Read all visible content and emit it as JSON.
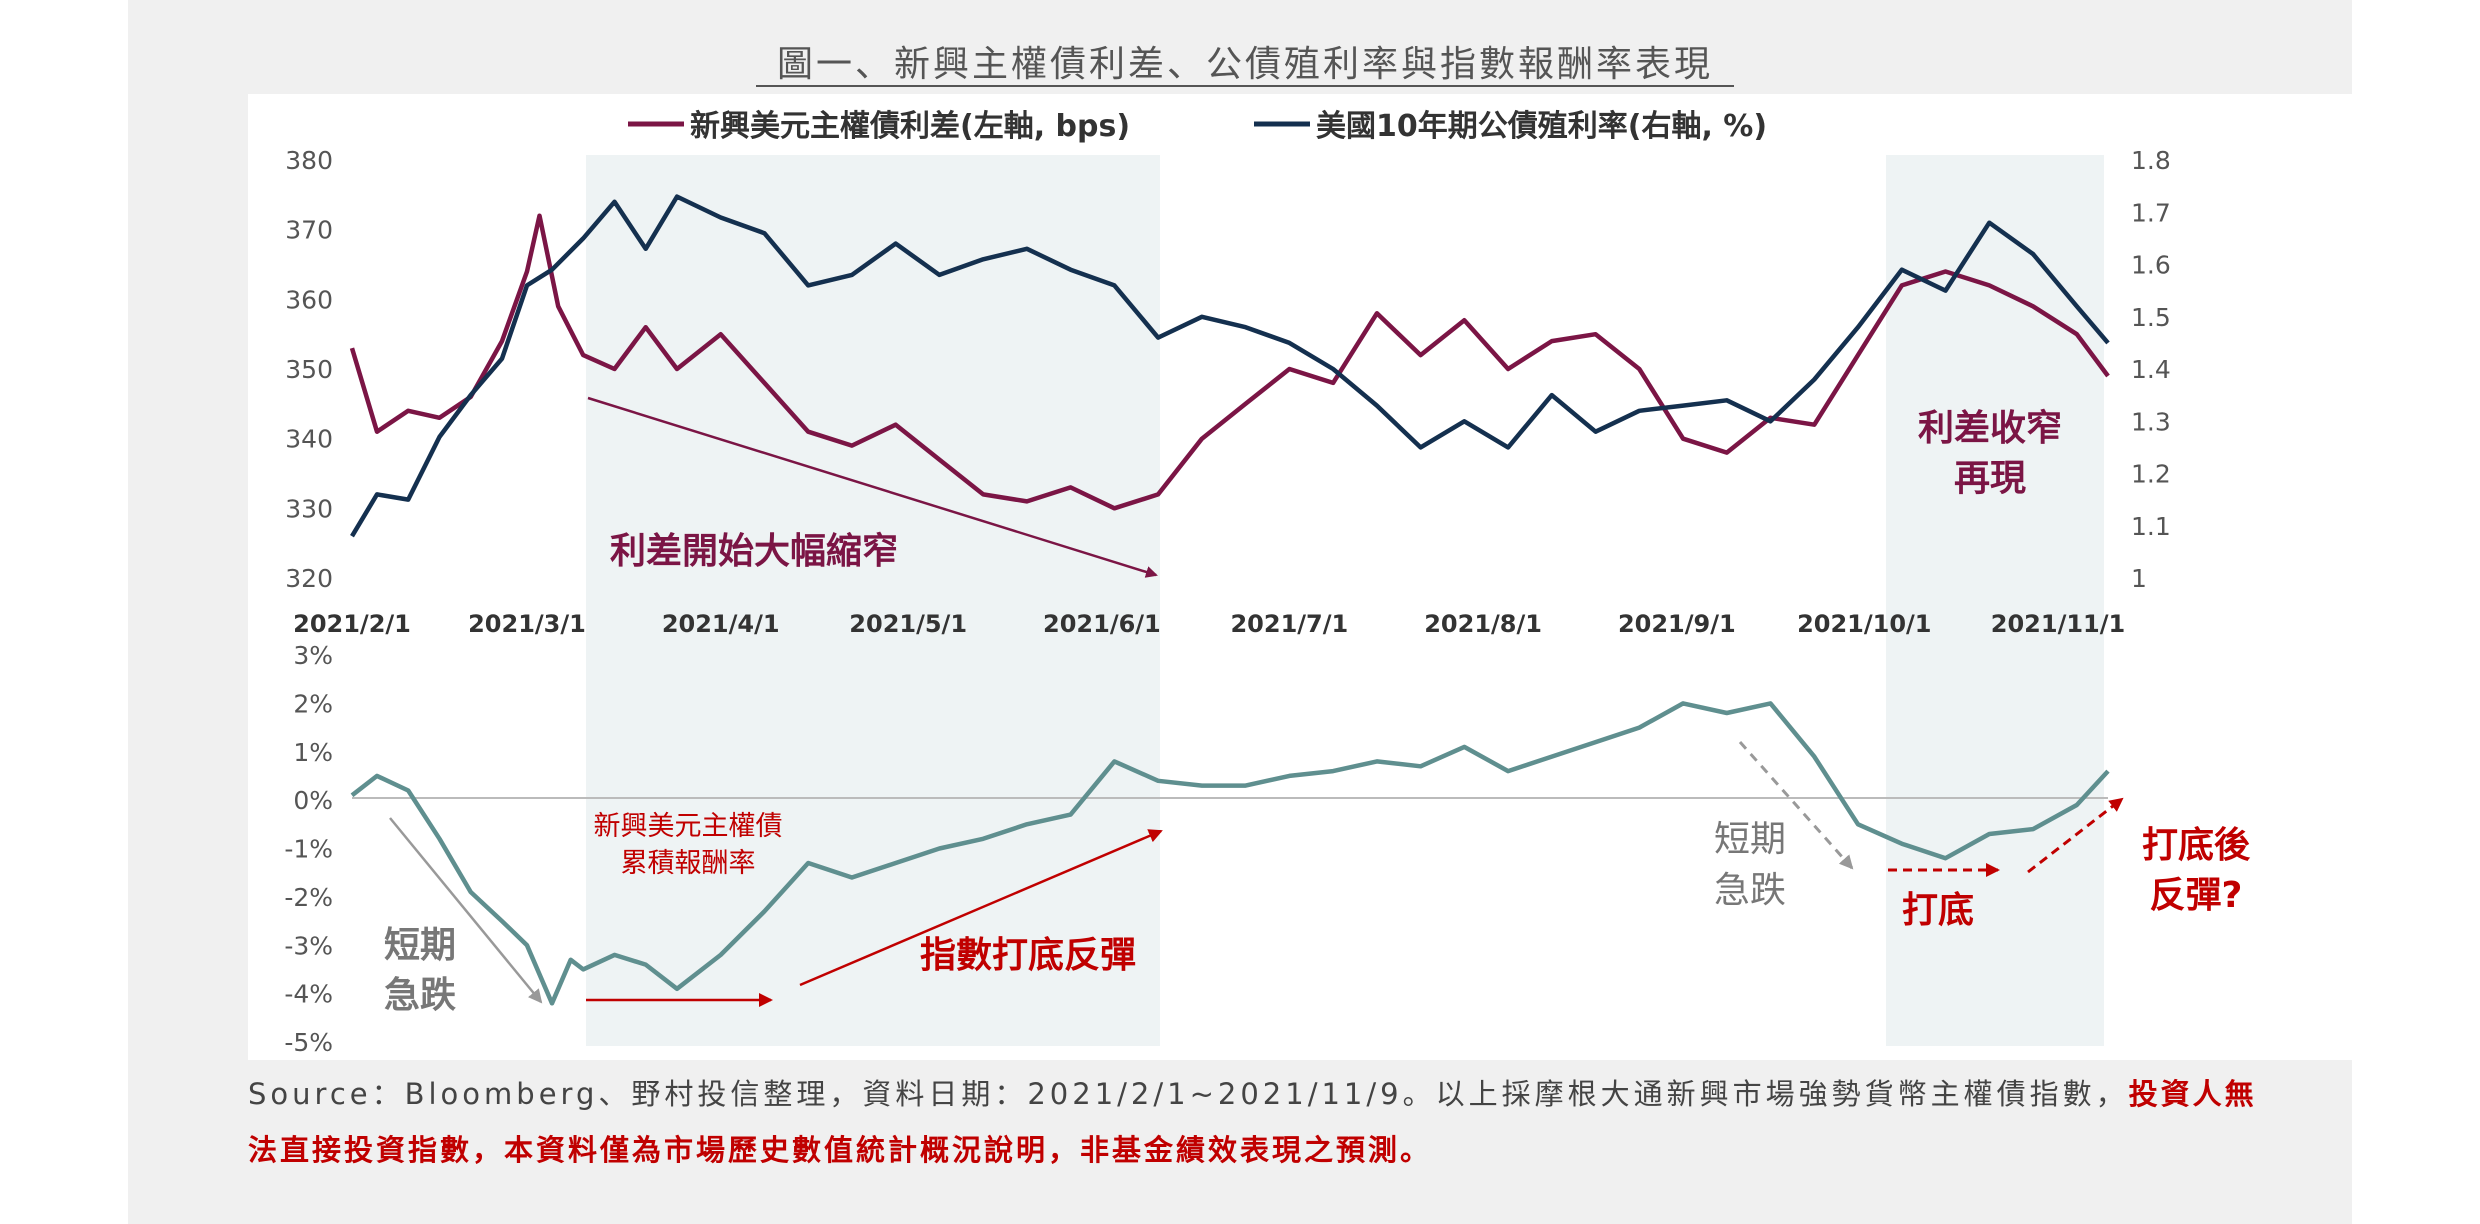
{
  "chart_data": [
    {
      "type": "line",
      "title": "圖一、新興主權債利差、公債殖利率與指數報酬率表現",
      "x_tick_labels": [
        "2021/2/1",
        "2021/3/1",
        "2021/4/1",
        "2021/5/1",
        "2021/6/1",
        "2021/7/1",
        "2021/8/1",
        "2021/9/1",
        "2021/10/1",
        "2021/11/1"
      ],
      "x_range": [
        "2021/2/1",
        "2021/11/9"
      ],
      "y_left": {
        "ylim": [
          320,
          380
        ],
        "ticks": [
          "380",
          "370",
          "360",
          "350",
          "340",
          "330",
          "320"
        ]
      },
      "y_right": {
        "ylim": [
          1.0,
          1.8
        ],
        "ticks": [
          "1.8",
          "1.7",
          "1.6",
          "1.5",
          "1.4",
          "1.3",
          "1.2",
          "1.1",
          "1"
        ]
      },
      "legend_position": "top",
      "grid": false,
      "series": [
        {
          "name": "新興美元主權債利差(左軸, bps)",
          "axis": "left",
          "color": "#7b1545",
          "x": [
            "2021/2/1",
            "2021/2/5",
            "2021/2/10",
            "2021/2/15",
            "2021/2/20",
            "2021/2/25",
            "2021/3/1",
            "2021/3/3",
            "2021/3/6",
            "2021/3/10",
            "2021/3/15",
            "2021/3/20",
            "2021/3/25",
            "2021/4/1",
            "2021/4/8",
            "2021/4/15",
            "2021/4/22",
            "2021/4/29",
            "2021/5/6",
            "2021/5/13",
            "2021/5/20",
            "2021/5/27",
            "2021/6/3",
            "2021/6/10",
            "2021/6/17",
            "2021/6/24",
            "2021/7/1",
            "2021/7/8",
            "2021/7/15",
            "2021/7/22",
            "2021/7/29",
            "2021/8/5",
            "2021/8/12",
            "2021/8/19",
            "2021/8/26",
            "2021/9/2",
            "2021/9/9",
            "2021/9/16",
            "2021/9/23",
            "2021/9/30",
            "2021/10/7",
            "2021/10/14",
            "2021/10/21",
            "2021/10/28",
            "2021/11/4",
            "2021/11/9"
          ],
          "values": [
            353,
            341,
            344,
            343,
            346,
            354,
            364,
            372,
            359,
            352,
            350,
            356,
            350,
            355,
            348,
            341,
            339,
            342,
            337,
            332,
            331,
            333,
            330,
            332,
            340,
            345,
            350,
            348,
            358,
            352,
            357,
            350,
            354,
            355,
            350,
            340,
            338,
            343,
            342,
            352,
            362,
            364,
            362,
            359,
            355,
            349
          ]
        },
        {
          "name": "美國10年期公債殖利率(右軸, %)",
          "axis": "right",
          "color": "#14304f",
          "x": [
            "2021/2/1",
            "2021/2/5",
            "2021/2/10",
            "2021/2/15",
            "2021/2/20",
            "2021/2/25",
            "2021/3/1",
            "2021/3/5",
            "2021/3/10",
            "2021/3/15",
            "2021/3/20",
            "2021/3/25",
            "2021/4/1",
            "2021/4/8",
            "2021/4/15",
            "2021/4/22",
            "2021/4/29",
            "2021/5/6",
            "2021/5/13",
            "2021/5/20",
            "2021/5/27",
            "2021/6/3",
            "2021/6/10",
            "2021/6/17",
            "2021/6/24",
            "2021/7/1",
            "2021/7/8",
            "2021/7/15",
            "2021/7/22",
            "2021/7/29",
            "2021/8/5",
            "2021/8/12",
            "2021/8/19",
            "2021/8/26",
            "2021/9/2",
            "2021/9/9",
            "2021/9/16",
            "2021/9/23",
            "2021/9/30",
            "2021/10/7",
            "2021/10/14",
            "2021/10/21",
            "2021/10/28",
            "2021/11/4",
            "2021/11/9"
          ],
          "values": [
            1.08,
            1.16,
            1.15,
            1.27,
            1.35,
            1.42,
            1.56,
            1.59,
            1.65,
            1.72,
            1.63,
            1.73,
            1.69,
            1.66,
            1.56,
            1.58,
            1.64,
            1.58,
            1.61,
            1.63,
            1.59,
            1.56,
            1.46,
            1.5,
            1.48,
            1.45,
            1.4,
            1.33,
            1.25,
            1.3,
            1.25,
            1.35,
            1.28,
            1.32,
            1.33,
            1.34,
            1.3,
            1.38,
            1.48,
            1.59,
            1.55,
            1.68,
            1.62,
            1.52,
            1.45
          ]
        }
      ],
      "annotations": [
        "利差開始大幅縮窄",
        "利差收窄",
        "再現"
      ]
    },
    {
      "type": "line",
      "ylim": [
        -5,
        3
      ],
      "y_ticks": [
        "3%",
        "2%",
        "1%",
        "0%",
        "-1%",
        "-2%",
        "-3%",
        "-4%",
        "-5%"
      ],
      "series": [
        {
          "name": "新興美元主權債累積報酬率",
          "color": "#5f8f8f",
          "x": [
            "2021/2/1",
            "2021/2/5",
            "2021/2/10",
            "2021/2/15",
            "2021/2/20",
            "2021/2/25",
            "2021/3/1",
            "2021/3/5",
            "2021/3/8",
            "2021/3/10",
            "2021/3/15",
            "2021/3/20",
            "2021/3/25",
            "2021/4/1",
            "2021/4/8",
            "2021/4/15",
            "2021/4/22",
            "2021/4/29",
            "2021/5/6",
            "2021/5/13",
            "2021/5/20",
            "2021/5/27",
            "2021/6/3",
            "2021/6/10",
            "2021/6/17",
            "2021/6/24",
            "2021/7/1",
            "2021/7/8",
            "2021/7/15",
            "2021/7/22",
            "2021/7/29",
            "2021/8/5",
            "2021/8/12",
            "2021/8/19",
            "2021/8/26",
            "2021/9/2",
            "2021/9/9",
            "2021/9/16",
            "2021/9/23",
            "2021/9/30",
            "2021/10/7",
            "2021/10/14",
            "2021/10/21",
            "2021/10/28",
            "2021/11/4",
            "2021/11/9"
          ],
          "values": [
            0.1,
            0.5,
            0.2,
            -0.8,
            -1.9,
            -2.5,
            -3.0,
            -4.2,
            -3.3,
            -3.5,
            -3.2,
            -3.4,
            -3.9,
            -3.2,
            -2.3,
            -1.3,
            -1.6,
            -1.3,
            -1.0,
            -0.8,
            -0.5,
            -0.3,
            0.8,
            0.4,
            0.3,
            0.3,
            0.5,
            0.6,
            0.8,
            0.7,
            1.1,
            0.6,
            0.9,
            1.2,
            1.5,
            2.0,
            1.8,
            2.0,
            0.9,
            -0.5,
            -0.9,
            -1.2,
            -0.7,
            -0.6,
            -0.1,
            0.6
          ]
        }
      ],
      "annotations": {
        "series_label_line1": "新興美元主權債",
        "series_label_line2": "累積報酬率",
        "drop_left_1": "短期",
        "drop_left_2": "急跌",
        "rebound": "指數打底反彈",
        "drop_right_1": "短期",
        "drop_right_2": "急跌",
        "bottom": "打底",
        "after_bottom_1": "打底後",
        "after_bottom_2": "反彈?"
      }
    }
  ],
  "legend": {
    "spread": "新興美元主權債利差(左軸, bps)",
    "treasury": "美國10年期公債殖利率(右軸, %)"
  },
  "top_annotations": {
    "narrowing": "利差開始大幅縮窄",
    "again_1": "利差收窄",
    "again_2": "再現"
  },
  "source": {
    "text": "Source：Bloomberg、野村投信整理，資料日期：2021/2/1~2021/11/9。以上採摩根大通新興市場強勢貨幣主權債指數，",
    "warning": "投資人無法直接投資指數，本資料僅為市場歷史數值統計概況說明，非基金績效表現之預測。"
  },
  "colors": {
    "spread": "#7b1545",
    "treasury": "#14304f",
    "returns": "#5f8f8f",
    "red_text": "#c00000",
    "shade": "#eef3f4",
    "gray_arrow": "#999999"
  }
}
